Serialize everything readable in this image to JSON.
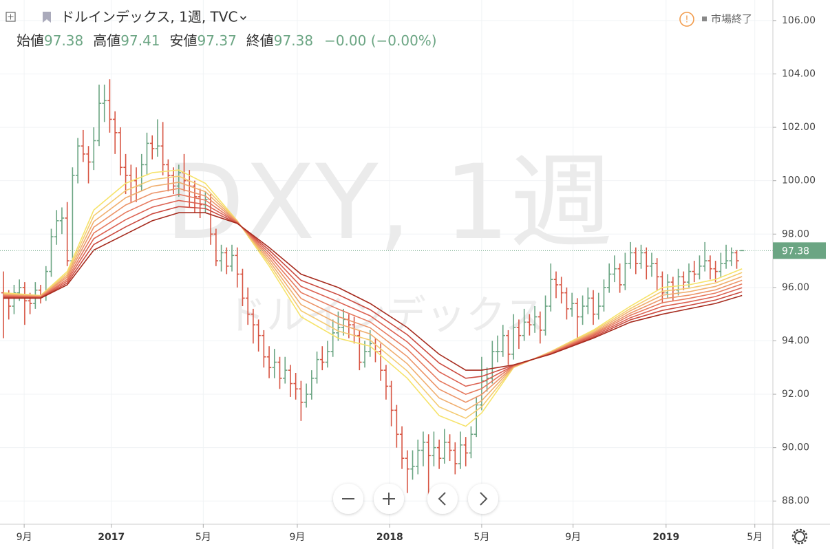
{
  "chart_data": {
    "type": "ohlc",
    "title": "ドルインデックス, 1週, TVC",
    "status": "市場終了",
    "ohlc_labels": [
      "始値",
      "高値",
      "安値",
      "終値"
    ],
    "change_label": "−0.00 (−0.00%)",
    "watermark": "DXY, 1週",
    "watermark_sub": "ドルインデックス",
    "up_color": "#6ba583",
    "down_color": "#d75442",
    "x": [
      0,
      1,
      2,
      3,
      4,
      5,
      6,
      7,
      8,
      9,
      10,
      11,
      12,
      13,
      14,
      15,
      16,
      17,
      18,
      19,
      20,
      21,
      22,
      23,
      24,
      25,
      26,
      27,
      28,
      29,
      30,
      31,
      32,
      33,
      34,
      35,
      36,
      37,
      38,
      39,
      40,
      41,
      42,
      43,
      44,
      45,
      46,
      47,
      48,
      49,
      50,
      51,
      52,
      53,
      54,
      55,
      56,
      57,
      58,
      59,
      60,
      61,
      62,
      63,
      64,
      65,
      66,
      67,
      68,
      69,
      70,
      71,
      72,
      73,
      74,
      75,
      76,
      77,
      78,
      79,
      80,
      81,
      82,
      83,
      84,
      85,
      86,
      87,
      88,
      89,
      90,
      91,
      92,
      93,
      94,
      95,
      96,
      97,
      98,
      99,
      100,
      101,
      102,
      103,
      104,
      105,
      106,
      107,
      108,
      109,
      110,
      111,
      112,
      113,
      114,
      115,
      116,
      117,
      118,
      119,
      120,
      121,
      122,
      123,
      124,
      125,
      126,
      127,
      128,
      129,
      130,
      131,
      132,
      133,
      134,
      135,
      136,
      137,
      138,
      139
    ],
    "open": [
      95.8,
      95.6,
      95.3,
      95.8,
      96.0,
      95.5,
      95.4,
      95.9,
      95.7,
      96.6,
      97.9,
      98.5,
      98.6,
      97.0,
      100.2,
      101.3,
      101.0,
      100.7,
      101.5,
      102.9,
      103.0,
      102.3,
      101.8,
      100.5,
      100.2,
      100.0,
      99.8,
      100.6,
      101.4,
      101.2,
      101.3,
      100.6,
      100.2,
      99.8,
      100.3,
      100.0,
      99.8,
      99.4,
      99.1,
      99.3,
      98.0,
      97.0,
      97.3,
      96.8,
      97.2,
      96.5,
      95.6,
      95.0,
      94.6,
      94.2,
      93.4,
      93.0,
      93.2,
      92.6,
      92.9,
      92.4,
      92.2,
      91.7,
      92.0,
      92.6,
      93.3,
      93.2,
      93.6,
      94.3,
      94.5,
      94.8,
      94.6,
      94.2,
      93.2,
      93.6,
      93.9,
      93.6,
      92.9,
      92.3,
      91.4,
      90.5,
      89.6,
      89.2,
      89.3,
      89.9,
      90.2,
      89.7,
      90.0,
      89.6,
      90.2,
      89.9,
      89.4,
      90.1,
      89.8,
      90.5,
      91.6,
      92.5,
      92.6,
      93.6,
      93.6,
      94.2,
      93.5,
      94.5,
      94.2,
      94.7,
      94.6,
      94.9,
      94.4,
      95.3,
      96.3,
      96.1,
      95.8,
      95.2,
      95.4,
      94.9,
      95.3,
      95.6,
      95.0,
      95.3,
      96.0,
      96.5,
      96.7,
      96.1,
      96.9,
      97.3,
      96.9,
      97.3,
      96.8,
      96.9,
      96.4,
      95.8,
      96.2,
      95.9,
      96.4,
      96.2,
      96.6,
      96.5,
      96.8,
      97.0,
      96.7,
      96.6,
      96.9,
      97.0,
      97.3,
      97.38
    ],
    "high": [
      96.6,
      95.9,
      96.1,
      96.3,
      96.2,
      95.8,
      96.2,
      96.1,
      96.8,
      98.2,
      98.9,
      99.0,
      99.2,
      100.5,
      101.6,
      101.9,
      101.3,
      102.0,
      103.6,
      103.6,
      103.8,
      102.6,
      102.0,
      101.0,
      100.6,
      100.5,
      101.0,
      101.8,
      101.7,
      102.3,
      102.2,
      100.8,
      100.5,
      100.6,
      101.0,
      100.4,
      100.0,
      99.7,
      99.6,
      99.5,
      98.2,
      97.6,
      97.5,
      97.6,
      97.5,
      96.7,
      96.0,
      95.2,
      94.8,
      94.4,
      93.8,
      93.7,
      93.4,
      93.4,
      93.1,
      92.8,
      92.5,
      92.4,
      92.9,
      93.6,
      93.8,
      94.0,
      94.8,
      95.1,
      95.2,
      95.0,
      94.9,
      94.4,
      94.0,
      94.4,
      94.1,
      93.9,
      93.1,
      92.5,
      91.6,
      90.8,
      89.9,
      89.9,
      90.3,
      90.6,
      90.5,
      90.6,
      90.3,
      90.7,
      90.5,
      90.2,
      90.6,
      90.4,
      90.8,
      91.9,
      93.4,
      93.0,
      94.0,
      94.2,
      94.6,
      94.4,
      95.0,
      94.8,
      95.2,
      95.0,
      95.3,
      95.1,
      95.7,
      96.9,
      96.6,
      96.4,
      96.0,
      95.8,
      95.6,
      95.7,
      96.0,
      95.9,
      95.8,
      96.3,
      96.9,
      97.2,
      96.9,
      97.3,
      97.7,
      97.5,
      97.6,
      97.5,
      97.3,
      97.1,
      96.6,
      96.5,
      96.4,
      96.7,
      96.6,
      96.9,
      97.0,
      97.2,
      97.7,
      97.2,
      97.0,
      97.3,
      97.6,
      97.5,
      97.4,
      97.41
    ],
    "low": [
      94.1,
      94.8,
      95.0,
      95.5,
      94.6,
      95.0,
      95.2,
      95.4,
      95.5,
      96.4,
      97.6,
      98.0,
      96.8,
      96.9,
      99.9,
      100.7,
      99.9,
      100.4,
      101.3,
      102.2,
      101.8,
      101.0,
      100.2,
      99.5,
      99.2,
      99.2,
      99.6,
      100.2,
      100.8,
      100.9,
      100.2,
      99.6,
      99.5,
      99.4,
      99.6,
      99.0,
      98.8,
      98.6,
      98.8,
      97.6,
      96.8,
      96.6,
      96.5,
      96.6,
      96.0,
      95.3,
      94.6,
      93.9,
      93.6,
      93.0,
      92.6,
      92.6,
      92.2,
      92.4,
      91.9,
      91.8,
      91.0,
      91.5,
      91.8,
      92.4,
      92.9,
      93.0,
      93.4,
      94.0,
      94.2,
      94.1,
      93.9,
      92.9,
      93.0,
      93.4,
      93.2,
      92.5,
      91.8,
      90.8,
      90.0,
      89.2,
      88.3,
      88.8,
      89.0,
      89.3,
      88.2,
      89.3,
      89.2,
      89.4,
      89.5,
      89.0,
      89.2,
      89.3,
      89.6,
      90.4,
      91.4,
      92.1,
      92.4,
      93.2,
      93.4,
      93.1,
      93.3,
      93.7,
      94.0,
      94.2,
      94.3,
      93.9,
      94.2,
      95.1,
      95.6,
      95.4,
      94.8,
      94.9,
      94.1,
      94.6,
      95.0,
      94.6,
      94.8,
      95.1,
      95.8,
      96.2,
      95.8,
      95.9,
      96.7,
      96.5,
      96.7,
      96.3,
      96.4,
      95.9,
      95.4,
      95.6,
      95.5,
      95.7,
      95.9,
      96.0,
      96.2,
      96.3,
      96.6,
      96.3,
      96.2,
      96.4,
      96.7,
      96.8,
      96.7,
      97.37
    ],
    "close": [
      95.6,
      95.3,
      95.8,
      96.0,
      95.5,
      95.4,
      95.9,
      95.7,
      96.6,
      97.9,
      98.5,
      98.6,
      97.0,
      100.2,
      101.3,
      101.0,
      100.7,
      101.5,
      102.9,
      103.0,
      102.3,
      101.8,
      100.5,
      100.2,
      100.0,
      99.8,
      100.6,
      101.4,
      101.2,
      101.3,
      100.6,
      100.2,
      99.8,
      100.3,
      100.0,
      99.8,
      99.4,
      99.1,
      99.3,
      98.0,
      97.0,
      97.3,
      96.8,
      97.2,
      96.5,
      95.6,
      95.0,
      94.6,
      94.2,
      93.4,
      93.0,
      93.2,
      92.6,
      92.9,
      92.4,
      92.2,
      91.7,
      92.0,
      92.6,
      93.3,
      93.2,
      93.6,
      94.3,
      94.5,
      94.8,
      94.6,
      94.2,
      93.2,
      93.6,
      93.9,
      93.6,
      92.9,
      92.3,
      91.4,
      90.5,
      89.6,
      89.2,
      89.3,
      89.9,
      90.2,
      89.7,
      90.0,
      89.6,
      90.2,
      89.9,
      89.4,
      90.1,
      89.8,
      90.5,
      91.6,
      92.5,
      92.6,
      93.6,
      93.6,
      94.2,
      93.5,
      94.5,
      94.2,
      94.7,
      94.6,
      94.9,
      94.4,
      95.3,
      96.3,
      96.1,
      95.8,
      95.2,
      95.4,
      94.9,
      95.3,
      95.6,
      95.0,
      95.3,
      96.0,
      96.5,
      96.7,
      96.1,
      96.9,
      97.3,
      96.9,
      97.3,
      96.8,
      96.9,
      96.4,
      95.8,
      96.2,
      95.9,
      96.4,
      96.2,
      96.6,
      96.5,
      96.8,
      97.0,
      96.7,
      96.6,
      96.9,
      97.0,
      97.3,
      97.0,
      97.38
    ],
    "ribbon_x": [
      0,
      7,
      12,
      17,
      23,
      28,
      33,
      38,
      44,
      50,
      56,
      63,
      69,
      76,
      82,
      87,
      90,
      96,
      103,
      111,
      118,
      124,
      129,
      134,
      139
    ],
    "ribbon": [
      {
        "color": "#f6e36a",
        "values": [
          95.8,
          95.7,
          96.6,
          98.9,
          99.9,
          100.3,
          100.4,
          99.9,
          98.5,
          96.8,
          94.9,
          94.1,
          93.8,
          92.6,
          91.2,
          90.8,
          91.3,
          93.0,
          93.6,
          94.4,
          95.3,
          96.0,
          96.1,
          96.3,
          96.7
        ]
      },
      {
        "color": "#f4cb72",
        "values": [
          95.77,
          95.69,
          96.53,
          98.69,
          99.63,
          100.04,
          100.17,
          99.74,
          98.49,
          96.9,
          95.13,
          94.37,
          94.03,
          92.87,
          91.53,
          91.1,
          91.53,
          93.01,
          93.59,
          94.36,
          95.21,
          95.86,
          95.97,
          96.17,
          96.56
        ]
      },
      {
        "color": "#f0ae6e",
        "values": [
          95.74,
          95.67,
          96.46,
          98.47,
          99.36,
          99.79,
          99.94,
          99.59,
          98.47,
          97.0,
          95.36,
          94.64,
          94.26,
          93.14,
          91.86,
          91.4,
          91.76,
          93.03,
          93.57,
          94.31,
          95.13,
          95.71,
          95.84,
          96.04,
          96.41
        ]
      },
      {
        "color": "#ec9468",
        "values": [
          95.71,
          95.66,
          96.39,
          98.26,
          99.09,
          99.53,
          99.71,
          99.43,
          98.46,
          97.1,
          95.59,
          94.91,
          94.49,
          93.41,
          92.19,
          91.7,
          91.99,
          93.04,
          93.56,
          94.27,
          95.04,
          95.57,
          95.71,
          95.91,
          96.27
        ]
      },
      {
        "color": "#e67a5f",
        "values": [
          95.69,
          95.64,
          96.31,
          98.04,
          98.81,
          99.27,
          99.49,
          99.27,
          98.44,
          97.2,
          95.81,
          95.19,
          94.71,
          93.69,
          92.51,
          92.0,
          92.21,
          93.06,
          93.54,
          94.23,
          94.96,
          95.43,
          95.59,
          95.79,
          96.13
        ]
      },
      {
        "color": "#dc6252",
        "values": [
          95.66,
          95.63,
          96.24,
          97.83,
          98.54,
          99.01,
          99.26,
          99.11,
          98.43,
          97.3,
          96.04,
          95.46,
          94.94,
          93.96,
          92.84,
          92.3,
          92.44,
          93.07,
          93.53,
          94.19,
          94.87,
          95.29,
          95.46,
          95.66,
          95.99
        ]
      },
      {
        "color": "#cb4a3f",
        "values": [
          95.63,
          95.61,
          96.17,
          97.61,
          98.27,
          98.76,
          99.03,
          98.96,
          98.41,
          97.4,
          96.27,
          95.73,
          95.17,
          94.23,
          93.17,
          92.6,
          92.67,
          93.09,
          93.51,
          94.14,
          94.79,
          95.14,
          95.33,
          95.53,
          95.84
        ]
      },
      {
        "color": "#a62b1e",
        "values": [
          95.6,
          95.6,
          96.1,
          97.4,
          98.0,
          98.5,
          98.8,
          98.8,
          98.4,
          97.5,
          96.5,
          96.0,
          95.4,
          94.5,
          93.5,
          92.9,
          92.9,
          93.1,
          93.5,
          94.1,
          94.7,
          95.0,
          95.2,
          95.4,
          95.7
        ]
      }
    ],
    "xlim": [
      -0.65,
      144.8
    ],
    "xticks": [
      {
        "value": 3.9,
        "label": "9月"
      },
      {
        "value": 20.3,
        "label": "2017"
      },
      {
        "value": 37.6,
        "label": "5月"
      },
      {
        "value": 55.3,
        "label": "9月"
      },
      {
        "value": 72.7,
        "label": "2018"
      },
      {
        "value": 90.0,
        "label": "5月"
      },
      {
        "value": 107.2,
        "label": "9月"
      },
      {
        "value": 124.7,
        "label": "2019"
      },
      {
        "value": 141.4,
        "label": "5月"
      }
    ],
    "ylim": [
      87.13,
      106.77
    ],
    "yticks": [
      {
        "value": 88,
        "label": "88.00"
      },
      {
        "value": 90,
        "label": "90.00"
      },
      {
        "value": 92,
        "label": "92.00"
      },
      {
        "value": 94,
        "label": "94.00"
      },
      {
        "value": 96,
        "label": "96.00"
      },
      {
        "value": 98,
        "label": "98.00"
      },
      {
        "value": 100,
        "label": "100.00"
      },
      {
        "value": 102,
        "label": "102.00"
      },
      {
        "value": 104,
        "label": "104.00"
      },
      {
        "value": 106,
        "label": "106.00"
      }
    ],
    "grid": true
  }
}
